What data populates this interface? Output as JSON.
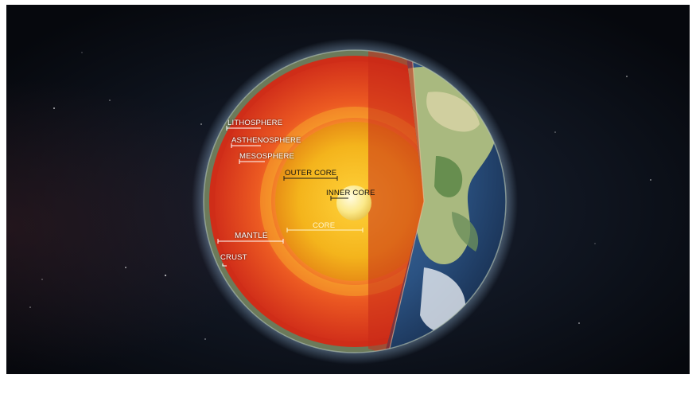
{
  "labels": {
    "lithosphere": "LITHOSPHERE",
    "asthenosphere": "ASTHENOSPHERE",
    "mesosphere": "MESOSPHERE",
    "outer_core": "OUTER CORE",
    "inner_core": "INNER CORE",
    "core": "CORE",
    "mantle": "MANTLE",
    "crust": "CRUST"
  },
  "colors": {
    "space": "#0b0f17",
    "mantle_red": "#e33a1c",
    "mantle_inner": "#f07a25",
    "outer_core": "#f3c51f",
    "inner_core": "#fff2a0",
    "ocean": "#2f5b8c",
    "land": "#9db47a",
    "crust_edge": "#8aa07a"
  }
}
